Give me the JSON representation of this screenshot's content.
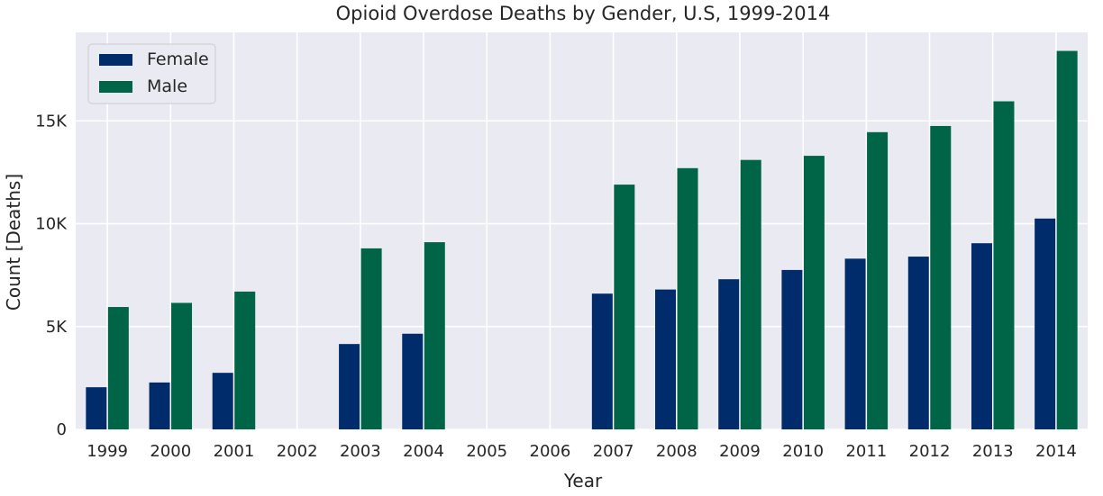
{
  "chart_data": {
    "type": "bar",
    "title": "Opioid Overdose Deaths by Gender, U.S, 1999-2014",
    "xlabel": "Year",
    "ylabel": "Count [Deaths]",
    "categories": [
      "1999",
      "2000",
      "2001",
      "2002",
      "2003",
      "2004",
      "2005",
      "2006",
      "2007",
      "2008",
      "2009",
      "2010",
      "2011",
      "2012",
      "2013",
      "2014"
    ],
    "series": [
      {
        "name": "Female",
        "color": "#002c6b",
        "values": [
          2050,
          2280,
          2750,
          0,
          4150,
          4650,
          0,
          0,
          6600,
          6800,
          7300,
          7750,
          8300,
          8400,
          9050,
          10250
        ]
      },
      {
        "name": "Male",
        "color": "#006446",
        "values": [
          5950,
          6150,
          6700,
          0,
          8800,
          9100,
          0,
          0,
          11900,
          12700,
          13100,
          13300,
          14450,
          14750,
          15950,
          18400
        ]
      }
    ],
    "yticks": [
      {
        "value": 0,
        "label": "0"
      },
      {
        "value": 5000,
        "label": "5K"
      },
      {
        "value": 10000,
        "label": "10K"
      },
      {
        "value": 15000,
        "label": "15K"
      }
    ],
    "ylim": [
      0,
      19300
    ],
    "grid": true,
    "legend_position": "top-left",
    "background_color": "#eaeaf2",
    "grid_color": "#ffffff"
  }
}
